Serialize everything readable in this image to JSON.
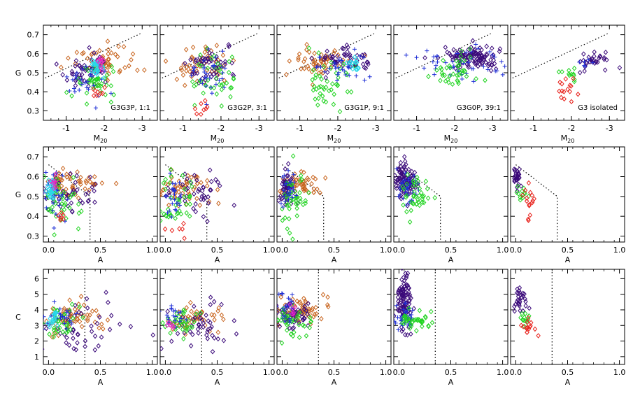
{
  "figure": {
    "colors": {
      "purple": "#3b0a7a",
      "blue": "#1f2fd6",
      "green": "#22d422",
      "orange": "#c8641e",
      "red": "#e8241e",
      "cyan": "#28d8e8",
      "magenta": "#e828c8",
      "black": "#000000"
    },
    "rows": [
      {
        "id": "gm20",
        "ylabel": "G",
        "xlabel_main": "M",
        "xlabel_sub": "20",
        "xlim": [
          -0.4,
          -3.4
        ],
        "ylim": [
          0.25,
          0.75
        ],
        "xticks": [
          "-1",
          "-2",
          "-3"
        ],
        "xtick_values": [
          -1,
          -2,
          -3
        ],
        "yticks": [
          "0.3",
          "0.4",
          "0.5",
          "0.6",
          "0.7"
        ],
        "ytick_values": [
          0.3,
          0.4,
          0.5,
          0.6,
          0.7
        ]
      },
      {
        "id": "ga",
        "ylabel": "G",
        "xlabel_main": "A",
        "xlabel_sub": "",
        "xlim": [
          -0.05,
          1.05
        ],
        "ylim": [
          0.27,
          0.75
        ],
        "xticks": [
          "0.0",
          "0.5",
          "1.0"
        ],
        "xtick_values": [
          0.0,
          0.5,
          1.0
        ],
        "yticks": [
          "0.3",
          "0.4",
          "0.5",
          "0.6",
          "0.7"
        ],
        "ytick_values": [
          0.3,
          0.4,
          0.5,
          0.6,
          0.7
        ]
      },
      {
        "id": "ca",
        "ylabel": "C",
        "xlabel_main": "A",
        "xlabel_sub": "",
        "xlim": [
          -0.05,
          1.05
        ],
        "ylim": [
          0.5,
          6.6
        ],
        "xticks": [
          "0.0",
          "0.5",
          "1.0"
        ],
        "xtick_values": [
          0.0,
          0.5,
          1.0
        ],
        "yticks": [
          "1",
          "2",
          "3",
          "4",
          "5",
          "6"
        ],
        "ytick_values": [
          1,
          2,
          3,
          4,
          5,
          6
        ]
      }
    ],
    "columns": [
      {
        "id": "g3g3p",
        "label": "G3G3P, 1:1"
      },
      {
        "id": "g3g2p",
        "label": "G3G2P, 3:1"
      },
      {
        "id": "g3g1p",
        "label": "G3G1P, 9:1"
      },
      {
        "id": "g3g0p",
        "label": "G3G0P, 39:1"
      },
      {
        "id": "g3iso",
        "label": "G3 isolated"
      }
    ]
  },
  "chart_data": {
    "type": "scatter",
    "rows": [
      {
        "x": "M20",
        "y": "G",
        "x_range": [
          -0.4,
          -3.4
        ],
        "y_range": [
          0.25,
          0.75
        ],
        "reference_lines": [
          {
            "type": "dotted",
            "points": [
              [
                0.0,
                0.43
              ],
              [
                -3.0,
                0.71
              ]
            ]
          }
        ]
      },
      {
        "x": "A",
        "y": "G",
        "x_range": [
          -0.05,
          1.05
        ],
        "y_range": [
          0.27,
          0.75
        ],
        "reference_lines": [
          {
            "type": "dotted",
            "points": [
              [
                0.0,
                0.66
              ],
              [
                0.4,
                0.5
              ],
              [
                0.4,
                0.27
              ]
            ]
          }
        ]
      },
      {
        "x": "A",
        "y": "C",
        "x_range": [
          -0.05,
          1.05
        ],
        "y_range": [
          0.5,
          6.6
        ],
        "reference_lines": [
          {
            "type": "dotted",
            "points": [
              [
                0.35,
                0.5
              ],
              [
                0.35,
                6.6
              ]
            ]
          }
        ]
      }
    ],
    "panels": [
      {
        "column": "G3G3P, 1:1",
        "clusters": [
          {
            "row": 0,
            "color": "orange",
            "shape": "diamond",
            "n": 60,
            "cx": -2.0,
            "cy": 0.56,
            "sx": 0.4,
            "sy": 0.05
          },
          {
            "row": 0,
            "color": "purple",
            "shape": "diamond",
            "n": 50,
            "cx": -1.5,
            "cy": 0.52,
            "sx": 0.3,
            "sy": 0.05
          },
          {
            "row": 0,
            "color": "green",
            "shape": "diamond",
            "n": 40,
            "cx": -1.7,
            "cy": 0.44,
            "sx": 0.25,
            "sy": 0.05
          },
          {
            "row": 0,
            "color": "blue",
            "shape": "plus",
            "n": 30,
            "cx": -1.6,
            "cy": 0.47,
            "sx": 0.3,
            "sy": 0.05
          },
          {
            "row": 0,
            "color": "cyan",
            "shape": "diamond",
            "n": 25,
            "cx": -1.8,
            "cy": 0.53,
            "sx": 0.1,
            "sy": 0.02
          },
          {
            "row": 0,
            "color": "magenta",
            "shape": "diamond",
            "n": 10,
            "cx": -1.9,
            "cy": 0.56,
            "sx": 0.05,
            "sy": 0.015
          },
          {
            "row": 0,
            "color": "red",
            "shape": "diamond",
            "n": 8,
            "cx": -1.85,
            "cy": 0.39,
            "sx": 0.1,
            "sy": 0.02
          },
          {
            "row": 1,
            "color": "orange",
            "shape": "diamond",
            "n": 60,
            "cx": 0.22,
            "cy": 0.56,
            "sx": 0.15,
            "sy": 0.04
          },
          {
            "row": 1,
            "color": "purple",
            "shape": "diamond",
            "n": 45,
            "cx": 0.15,
            "cy": 0.52,
            "sx": 0.17,
            "sy": 0.05
          },
          {
            "row": 1,
            "color": "green",
            "shape": "diamond",
            "n": 40,
            "cx": 0.12,
            "cy": 0.48,
            "sx": 0.1,
            "sy": 0.06
          },
          {
            "row": 1,
            "color": "blue",
            "shape": "plus",
            "n": 30,
            "cx": 0.08,
            "cy": 0.5,
            "sx": 0.06,
            "sy": 0.06
          },
          {
            "row": 1,
            "color": "cyan",
            "shape": "diamond",
            "n": 25,
            "cx": 0.03,
            "cy": 0.53,
            "sx": 0.02,
            "sy": 0.03
          },
          {
            "row": 1,
            "color": "magenta",
            "shape": "diamond",
            "n": 8,
            "cx": 0.05,
            "cy": 0.55,
            "sx": 0.02,
            "sy": 0.02
          },
          {
            "row": 1,
            "color": "red",
            "shape": "diamond",
            "n": 6,
            "cx": 0.12,
            "cy": 0.38,
            "sx": 0.04,
            "sy": 0.02
          },
          {
            "row": 2,
            "color": "orange",
            "shape": "diamond",
            "n": 60,
            "cx": 0.25,
            "cy": 3.4,
            "sx": 0.12,
            "sy": 0.5
          },
          {
            "row": 2,
            "color": "purple",
            "shape": "diamond",
            "n": 45,
            "cx": 0.3,
            "cy": 2.8,
            "sx": 0.2,
            "sy": 0.7
          },
          {
            "row": 2,
            "color": "green",
            "shape": "diamond",
            "n": 35,
            "cx": 0.15,
            "cy": 3.3,
            "sx": 0.1,
            "sy": 0.4
          },
          {
            "row": 2,
            "color": "blue",
            "shape": "plus",
            "n": 25,
            "cx": 0.12,
            "cy": 3.5,
            "sx": 0.08,
            "sy": 0.4
          },
          {
            "row": 2,
            "color": "cyan",
            "shape": "diamond",
            "n": 20,
            "cx": 0.04,
            "cy": 3.4,
            "sx": 0.03,
            "sy": 0.2
          }
        ]
      },
      {
        "column": "G3G2P, 3:1",
        "clusters": [
          {
            "row": 0,
            "color": "orange",
            "shape": "diamond",
            "n": 50,
            "cx": -1.5,
            "cy": 0.54,
            "sx": 0.35,
            "sy": 0.05
          },
          {
            "row": 0,
            "color": "purple",
            "shape": "diamond",
            "n": 50,
            "cx": -1.8,
            "cy": 0.53,
            "sx": 0.35,
            "sy": 0.05
          },
          {
            "row": 0,
            "color": "green",
            "shape": "diamond",
            "n": 40,
            "cx": -1.8,
            "cy": 0.46,
            "sx": 0.3,
            "sy": 0.07
          },
          {
            "row": 0,
            "color": "blue",
            "shape": "plus",
            "n": 30,
            "cx": -1.8,
            "cy": 0.5,
            "sx": 0.25,
            "sy": 0.05
          },
          {
            "row": 0,
            "color": "red",
            "shape": "diamond",
            "n": 8,
            "cx": -1.5,
            "cy": 0.33,
            "sx": 0.15,
            "sy": 0.03
          },
          {
            "row": 1,
            "color": "orange",
            "shape": "diamond",
            "n": 55,
            "cx": 0.2,
            "cy": 0.54,
            "sx": 0.15,
            "sy": 0.04
          },
          {
            "row": 1,
            "color": "purple",
            "shape": "diamond",
            "n": 45,
            "cx": 0.25,
            "cy": 0.52,
            "sx": 0.2,
            "sy": 0.05
          },
          {
            "row": 1,
            "color": "green",
            "shape": "diamond",
            "n": 40,
            "cx": 0.1,
            "cy": 0.47,
            "sx": 0.1,
            "sy": 0.07
          },
          {
            "row": 1,
            "color": "blue",
            "shape": "plus",
            "n": 25,
            "cx": 0.06,
            "cy": 0.52,
            "sx": 0.05,
            "sy": 0.05
          },
          {
            "row": 1,
            "color": "red",
            "shape": "diamond",
            "n": 6,
            "cx": 0.1,
            "cy": 0.34,
            "sx": 0.05,
            "sy": 0.03
          },
          {
            "row": 2,
            "color": "orange",
            "shape": "diamond",
            "n": 50,
            "cx": 0.25,
            "cy": 3.4,
            "sx": 0.15,
            "sy": 0.5
          },
          {
            "row": 2,
            "color": "purple",
            "shape": "diamond",
            "n": 45,
            "cx": 0.35,
            "cy": 2.8,
            "sx": 0.2,
            "sy": 0.7
          },
          {
            "row": 2,
            "color": "green",
            "shape": "diamond",
            "n": 35,
            "cx": 0.15,
            "cy": 3.3,
            "sx": 0.1,
            "sy": 0.4
          },
          {
            "row": 2,
            "color": "blue",
            "shape": "plus",
            "n": 20,
            "cx": 0.08,
            "cy": 3.6,
            "sx": 0.05,
            "sy": 0.3
          },
          {
            "row": 2,
            "color": "magenta",
            "shape": "diamond",
            "n": 6,
            "cx": 0.05,
            "cy": 2.9,
            "sx": 0.03,
            "sy": 0.2
          }
        ]
      },
      {
        "column": "G3G1P, 9:1",
        "clusters": [
          {
            "row": 0,
            "color": "orange",
            "shape": "diamond",
            "n": 55,
            "cx": -1.5,
            "cy": 0.56,
            "sx": 0.35,
            "sy": 0.04
          },
          {
            "row": 0,
            "color": "purple",
            "shape": "diamond",
            "n": 55,
            "cx": -2.2,
            "cy": 0.57,
            "sx": 0.35,
            "sy": 0.03
          },
          {
            "row": 0,
            "color": "green",
            "shape": "diamond",
            "n": 45,
            "cx": -1.8,
            "cy": 0.45,
            "sx": 0.3,
            "sy": 0.07
          },
          {
            "row": 0,
            "color": "blue",
            "shape": "plus",
            "n": 30,
            "cx": -2.1,
            "cy": 0.54,
            "sx": 0.3,
            "sy": 0.04
          },
          {
            "row": 0,
            "color": "cyan",
            "shape": "diamond",
            "n": 15,
            "cx": -2.4,
            "cy": 0.55,
            "sx": 0.1,
            "sy": 0.02
          },
          {
            "row": 1,
            "color": "orange",
            "shape": "diamond",
            "n": 55,
            "cx": 0.15,
            "cy": 0.56,
            "sx": 0.1,
            "sy": 0.03
          },
          {
            "row": 1,
            "color": "purple",
            "shape": "diamond",
            "n": 55,
            "cx": 0.05,
            "cy": 0.55,
            "sx": 0.04,
            "sy": 0.04
          },
          {
            "row": 1,
            "color": "green",
            "shape": "diamond",
            "n": 45,
            "cx": 0.12,
            "cy": 0.47,
            "sx": 0.08,
            "sy": 0.07
          },
          {
            "row": 1,
            "color": "blue",
            "shape": "plus",
            "n": 25,
            "cx": 0.05,
            "cy": 0.54,
            "sx": 0.04,
            "sy": 0.04
          },
          {
            "row": 2,
            "color": "orange",
            "shape": "diamond",
            "n": 60,
            "cx": 0.2,
            "cy": 4.0,
            "sx": 0.12,
            "sy": 0.4
          },
          {
            "row": 2,
            "color": "purple",
            "shape": "diamond",
            "n": 55,
            "cx": 0.08,
            "cy": 3.7,
            "sx": 0.08,
            "sy": 0.5
          },
          {
            "row": 2,
            "color": "green",
            "shape": "diamond",
            "n": 40,
            "cx": 0.1,
            "cy": 3.2,
            "sx": 0.1,
            "sy": 0.5
          },
          {
            "row": 2,
            "color": "blue",
            "shape": "plus",
            "n": 25,
            "cx": 0.06,
            "cy": 4.2,
            "sx": 0.05,
            "sy": 0.5
          },
          {
            "row": 2,
            "color": "magenta",
            "shape": "diamond",
            "n": 6,
            "cx": 0.12,
            "cy": 4.1,
            "sx": 0.03,
            "sy": 0.15
          }
        ]
      },
      {
        "column": "G3G0P, 39:1",
        "clusters": [
          {
            "row": 0,
            "color": "purple",
            "shape": "diamond",
            "n": 110,
            "cx": -2.5,
            "cy": 0.58,
            "sx": 0.4,
            "sy": 0.03
          },
          {
            "row": 0,
            "color": "blue",
            "shape": "plus",
            "n": 45,
            "cx": -2.2,
            "cy": 0.55,
            "sx": 0.5,
            "sy": 0.05
          },
          {
            "row": 0,
            "color": "green",
            "shape": "diamond",
            "n": 40,
            "cx": -2.0,
            "cy": 0.5,
            "sx": 0.3,
            "sy": 0.05
          },
          {
            "row": 1,
            "color": "purple",
            "shape": "diamond",
            "n": 100,
            "cx": 0.05,
            "cy": 0.58,
            "sx": 0.05,
            "sy": 0.04
          },
          {
            "row": 1,
            "color": "blue",
            "shape": "plus",
            "n": 40,
            "cx": 0.07,
            "cy": 0.55,
            "sx": 0.05,
            "sy": 0.04
          },
          {
            "row": 1,
            "color": "green",
            "shape": "diamond",
            "n": 40,
            "cx": 0.15,
            "cy": 0.51,
            "sx": 0.08,
            "sy": 0.05
          },
          {
            "row": 2,
            "color": "purple",
            "shape": "diamond",
            "n": 100,
            "cx": 0.05,
            "cy": 4.6,
            "sx": 0.04,
            "sy": 0.9
          },
          {
            "row": 2,
            "color": "blue",
            "shape": "plus",
            "n": 40,
            "cx": 0.07,
            "cy": 3.5,
            "sx": 0.05,
            "sy": 0.5
          },
          {
            "row": 2,
            "color": "green",
            "shape": "diamond",
            "n": 40,
            "cx": 0.15,
            "cy": 3.4,
            "sx": 0.08,
            "sy": 0.3
          }
        ]
      },
      {
        "column": "G3 isolated",
        "clusters": [
          {
            "row": 0,
            "color": "purple",
            "shape": "diamond",
            "n": 30,
            "cx": -2.6,
            "cy": 0.56,
            "sx": 0.25,
            "sy": 0.03
          },
          {
            "row": 0,
            "color": "blue",
            "shape": "plus",
            "n": 6,
            "cx": -2.4,
            "cy": 0.56,
            "sx": 0.1,
            "sy": 0.02
          },
          {
            "row": 0,
            "color": "green",
            "shape": "diamond",
            "n": 12,
            "cx": -2.0,
            "cy": 0.49,
            "sx": 0.15,
            "sy": 0.02
          },
          {
            "row": 0,
            "color": "red",
            "shape": "diamond",
            "n": 15,
            "cx": -1.9,
            "cy": 0.42,
            "sx": 0.15,
            "sy": 0.04
          },
          {
            "row": 1,
            "color": "purple",
            "shape": "diamond",
            "n": 30,
            "cx": 0.02,
            "cy": 0.59,
            "sx": 0.02,
            "sy": 0.03
          },
          {
            "row": 1,
            "color": "green",
            "shape": "diamond",
            "n": 12,
            "cx": 0.06,
            "cy": 0.52,
            "sx": 0.03,
            "sy": 0.02
          },
          {
            "row": 1,
            "color": "red",
            "shape": "diamond",
            "n": 15,
            "cx": 0.12,
            "cy": 0.45,
            "sx": 0.04,
            "sy": 0.05
          },
          {
            "row": 2,
            "color": "purple",
            "shape": "diamond",
            "n": 30,
            "cx": 0.04,
            "cy": 4.6,
            "sx": 0.03,
            "sy": 0.5
          },
          {
            "row": 2,
            "color": "green",
            "shape": "diamond",
            "n": 12,
            "cx": 0.08,
            "cy": 3.4,
            "sx": 0.03,
            "sy": 0.2
          },
          {
            "row": 2,
            "color": "red",
            "shape": "diamond",
            "n": 15,
            "cx": 0.13,
            "cy": 2.9,
            "sx": 0.04,
            "sy": 0.3
          }
        ]
      }
    ]
  }
}
